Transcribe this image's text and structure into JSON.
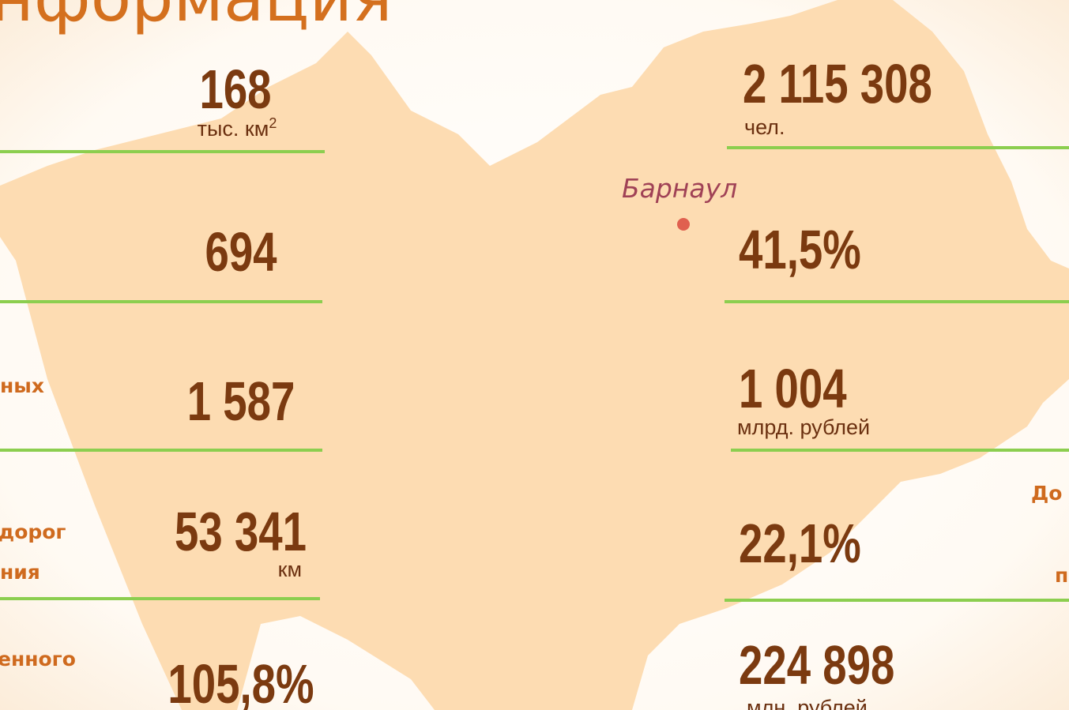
{
  "title": "нформация",
  "city": "Барнаул",
  "left": [
    {
      "value": "168",
      "unit": "тыс. км",
      "sup": "2"
    },
    {
      "value": "694"
    },
    {
      "value": "1 587",
      "label": "ных"
    },
    {
      "value": "53 341",
      "unit": "км",
      "label": "дорог",
      "label2": "ния"
    },
    {
      "value": "105,8%",
      "label": "енного"
    }
  ],
  "right": [
    {
      "value": "2 115 308",
      "unit": "чел."
    },
    {
      "value": "41,5%"
    },
    {
      "value": "1 004",
      "unit": "млрд. рублей"
    },
    {
      "value": "22,1%",
      "label": "До",
      "label2": "п"
    },
    {
      "value": "224 898",
      "unit": "млн. рублей"
    }
  ]
}
